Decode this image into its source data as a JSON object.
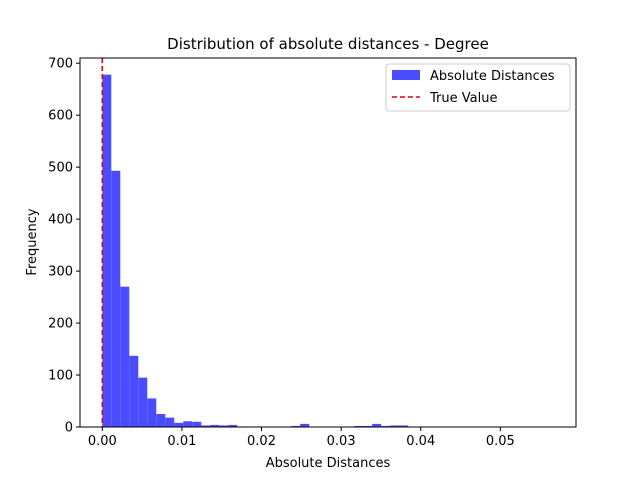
{
  "chart_data": {
    "type": "bar",
    "title": "Distribution of absolute distances - Degree",
    "xlabel": "Absolute Distances",
    "ylabel": "Frequency",
    "xlim": [
      -0.0028,
      0.0595
    ],
    "ylim": [
      0,
      710
    ],
    "xticks": [
      0.0,
      0.01,
      0.02,
      0.03,
      0.04,
      0.05
    ],
    "xtick_labels": [
      "0.00",
      "0.01",
      "0.02",
      "0.03",
      "0.04",
      "0.05"
    ],
    "yticks": [
      0,
      100,
      200,
      300,
      400,
      500,
      600,
      700
    ],
    "ytick_labels": [
      "0",
      "100",
      "200",
      "300",
      "400",
      "500",
      "600",
      "700"
    ],
    "grid": false,
    "legend_position": "top-right",
    "series": [
      {
        "name": "Absolute Distances",
        "kind": "histogram",
        "color": "#4b4bff",
        "bin_start": 0.0,
        "bin_width": 0.00113,
        "counts": [
          678,
          493,
          270,
          137,
          95,
          55,
          25,
          18,
          8,
          11,
          10,
          3,
          4,
          3,
          4,
          1,
          0,
          1,
          1,
          1,
          1,
          2,
          6,
          0,
          0,
          0,
          0,
          0,
          2,
          2,
          6,
          2,
          3,
          3,
          0,
          0,
          0,
          0,
          0,
          0,
          0,
          0,
          0,
          0,
          0,
          0,
          0,
          0,
          0,
          0
        ]
      },
      {
        "name": "True Value",
        "kind": "vline",
        "color": "#e00000",
        "x": 0.0
      }
    ]
  }
}
